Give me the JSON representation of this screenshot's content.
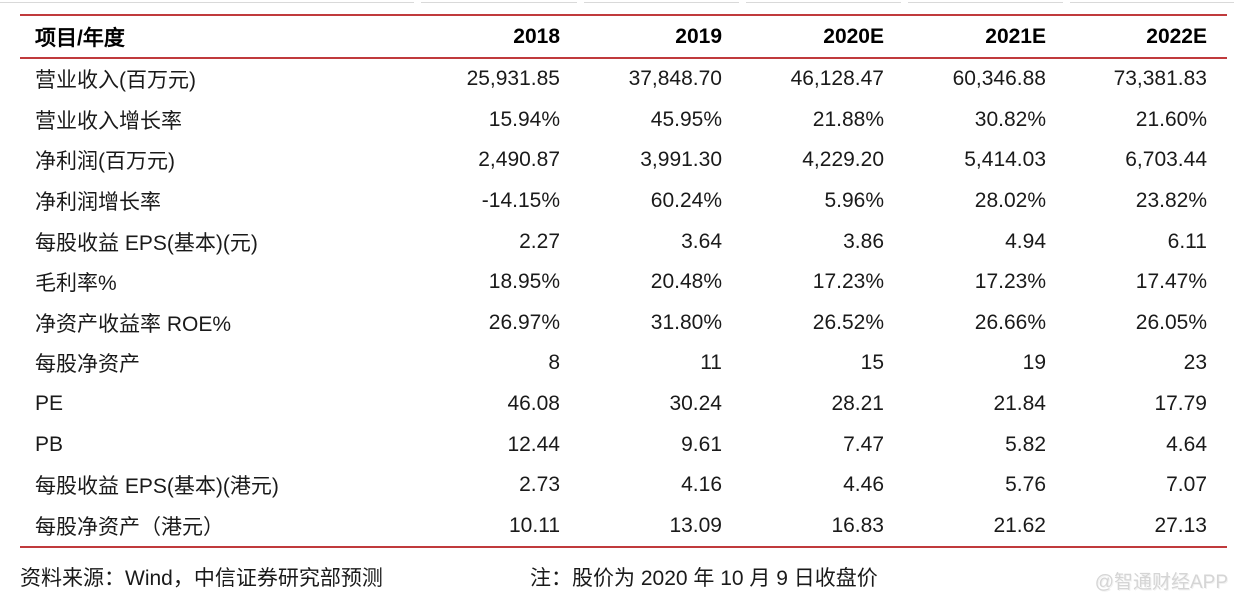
{
  "chart_data": {
    "type": "table",
    "columns": [
      "项目/年度",
      "2018",
      "2019",
      "2020E",
      "2021E",
      "2022E"
    ],
    "rows": [
      {
        "label": "营业收入(百万元)",
        "values": [
          "25,931.85",
          "37,848.70",
          "46,128.47",
          "60,346.88",
          "73,381.83"
        ]
      },
      {
        "label": "营业收入增长率",
        "values": [
          "15.94%",
          "45.95%",
          "21.88%",
          "30.82%",
          "21.60%"
        ]
      },
      {
        "label": "净利润(百万元)",
        "values": [
          "2,490.87",
          "3,991.30",
          "4,229.20",
          "5,414.03",
          "6,703.44"
        ]
      },
      {
        "label": "净利润增长率",
        "values": [
          "-14.15%",
          "60.24%",
          "5.96%",
          "28.02%",
          "23.82%"
        ]
      },
      {
        "label": "每股收益 EPS(基本)(元)",
        "values": [
          "2.27",
          "3.64",
          "3.86",
          "4.94",
          "6.11"
        ]
      },
      {
        "label": "毛利率%",
        "values": [
          "18.95%",
          "20.48%",
          "17.23%",
          "17.23%",
          "17.47%"
        ]
      },
      {
        "label": "净资产收益率 ROE%",
        "values": [
          "26.97%",
          "31.80%",
          "26.52%",
          "26.66%",
          "26.05%"
        ]
      },
      {
        "label": "每股净资产",
        "values": [
          "8",
          "11",
          "15",
          "19",
          "23"
        ]
      },
      {
        "label": "PE",
        "values": [
          "46.08",
          "30.24",
          "28.21",
          "21.84",
          "17.79"
        ]
      },
      {
        "label": "PB",
        "values": [
          "12.44",
          "9.61",
          "7.47",
          "5.82",
          "4.64"
        ]
      },
      {
        "label": "每股收益 EPS(基本)(港元)",
        "values": [
          "2.73",
          "4.16",
          "4.46",
          "5.76",
          "7.07"
        ]
      },
      {
        "label": "每股净资产（港元）",
        "values": [
          "10.11",
          "13.09",
          "16.83",
          "21.62",
          "27.13"
        ]
      }
    ]
  },
  "footer": {
    "source": "资料来源：Wind，中信证券研究部预测",
    "note": "注：股价为 2020 年 10 月 9 日收盘价"
  },
  "watermark": {
    "text": "@智通财经APP"
  },
  "colors": {
    "accent_red": "#c03a3c",
    "text_black": "#1a1a1a",
    "header_black": "#000000",
    "watermark_gray": "#d5d5d5",
    "divider_gray": "#d9d9d9"
  }
}
